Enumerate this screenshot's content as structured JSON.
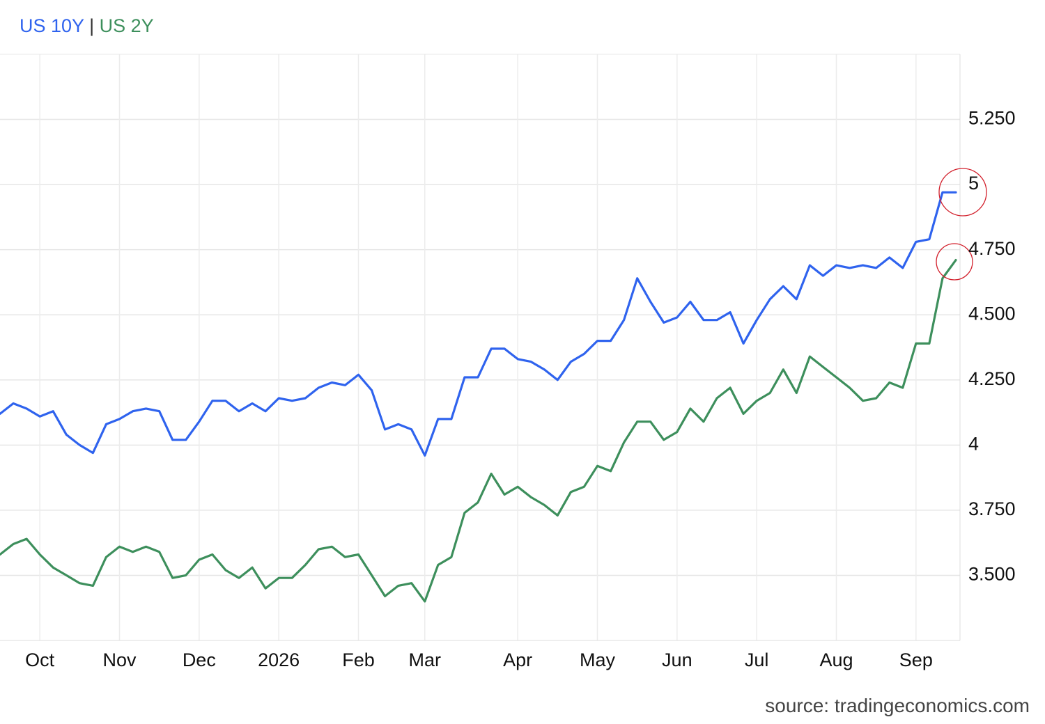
{
  "chart_data": {
    "type": "line",
    "legend_separator": "|",
    "source": "source: tradingeconomics.com",
    "categories": [
      null,
      null,
      null,
      "Oct",
      null,
      null,
      null,
      null,
      null,
      "Nov",
      null,
      null,
      null,
      null,
      null,
      "Dec",
      null,
      null,
      null,
      null,
      null,
      "2026",
      null,
      null,
      null,
      null,
      null,
      "Feb",
      null,
      null,
      null,
      null,
      "Mar",
      null,
      null,
      null,
      null,
      null,
      null,
      "Apr",
      null,
      null,
      null,
      null,
      null,
      "May",
      null,
      null,
      null,
      null,
      null,
      "Jun",
      null,
      null,
      null,
      null,
      null,
      "Jul",
      null,
      null,
      null,
      null,
      null,
      "Aug",
      null,
      null,
      null,
      null,
      null,
      "Sep",
      null,
      null,
      null
    ],
    "series": [
      {
        "name": "US 10Y",
        "color": "#2f63ee",
        "values": [
          4.12,
          4.16,
          4.14,
          4.11,
          4.13,
          4.04,
          4.0,
          3.97,
          4.08,
          4.1,
          4.13,
          4.14,
          4.13,
          4.02,
          4.02,
          4.09,
          4.17,
          4.17,
          4.13,
          4.16,
          4.13,
          4.18,
          4.17,
          4.18,
          4.22,
          4.24,
          4.23,
          4.27,
          4.21,
          4.06,
          4.08,
          4.06,
          3.96,
          4.1,
          4.1,
          4.26,
          4.26,
          4.37,
          4.37,
          4.33,
          4.32,
          4.29,
          4.25,
          4.32,
          4.35,
          4.4,
          4.4,
          4.48,
          4.64,
          4.55,
          4.47,
          4.49,
          4.55,
          4.48,
          4.48,
          4.51,
          4.39,
          4.48,
          4.56,
          4.61,
          4.56,
          4.69,
          4.65,
          4.69,
          4.68,
          4.69,
          4.68,
          4.72,
          4.68,
          4.78,
          4.79,
          4.97,
          4.97
        ]
      },
      {
        "name": "US 2Y",
        "color": "#3d8f5c",
        "values": [
          3.58,
          3.62,
          3.64,
          3.58,
          3.53,
          3.5,
          3.47,
          3.46,
          3.57,
          3.61,
          3.59,
          3.61,
          3.59,
          3.49,
          3.5,
          3.56,
          3.58,
          3.52,
          3.49,
          3.53,
          3.45,
          3.49,
          3.49,
          3.54,
          3.6,
          3.61,
          3.57,
          3.58,
          3.5,
          3.42,
          3.46,
          3.47,
          3.4,
          3.54,
          3.57,
          3.74,
          3.78,
          3.89,
          3.81,
          3.84,
          3.8,
          3.77,
          3.73,
          3.82,
          3.84,
          3.92,
          3.9,
          4.01,
          4.09,
          4.09,
          4.02,
          4.05,
          4.14,
          4.09,
          4.18,
          4.22,
          4.12,
          4.17,
          4.2,
          4.29,
          4.2,
          4.34,
          4.3,
          4.26,
          4.22,
          4.17,
          4.18,
          4.24,
          4.22,
          4.39,
          4.39,
          4.64,
          4.71
        ]
      }
    ],
    "ylim": [
      3.25,
      5.5
    ],
    "yticks": [
      {
        "value": 3.5,
        "label": "3.500"
      },
      {
        "value": 3.75,
        "label": "3.750"
      },
      4,
      {
        "value": 4.25,
        "label": "4.250"
      },
      {
        "value": 4.5,
        "label": "4.500"
      },
      {
        "value": 4.75,
        "label": "4.750"
      },
      5,
      {
        "value": 5.25,
        "label": "5.250"
      }
    ],
    "grid": true
  }
}
